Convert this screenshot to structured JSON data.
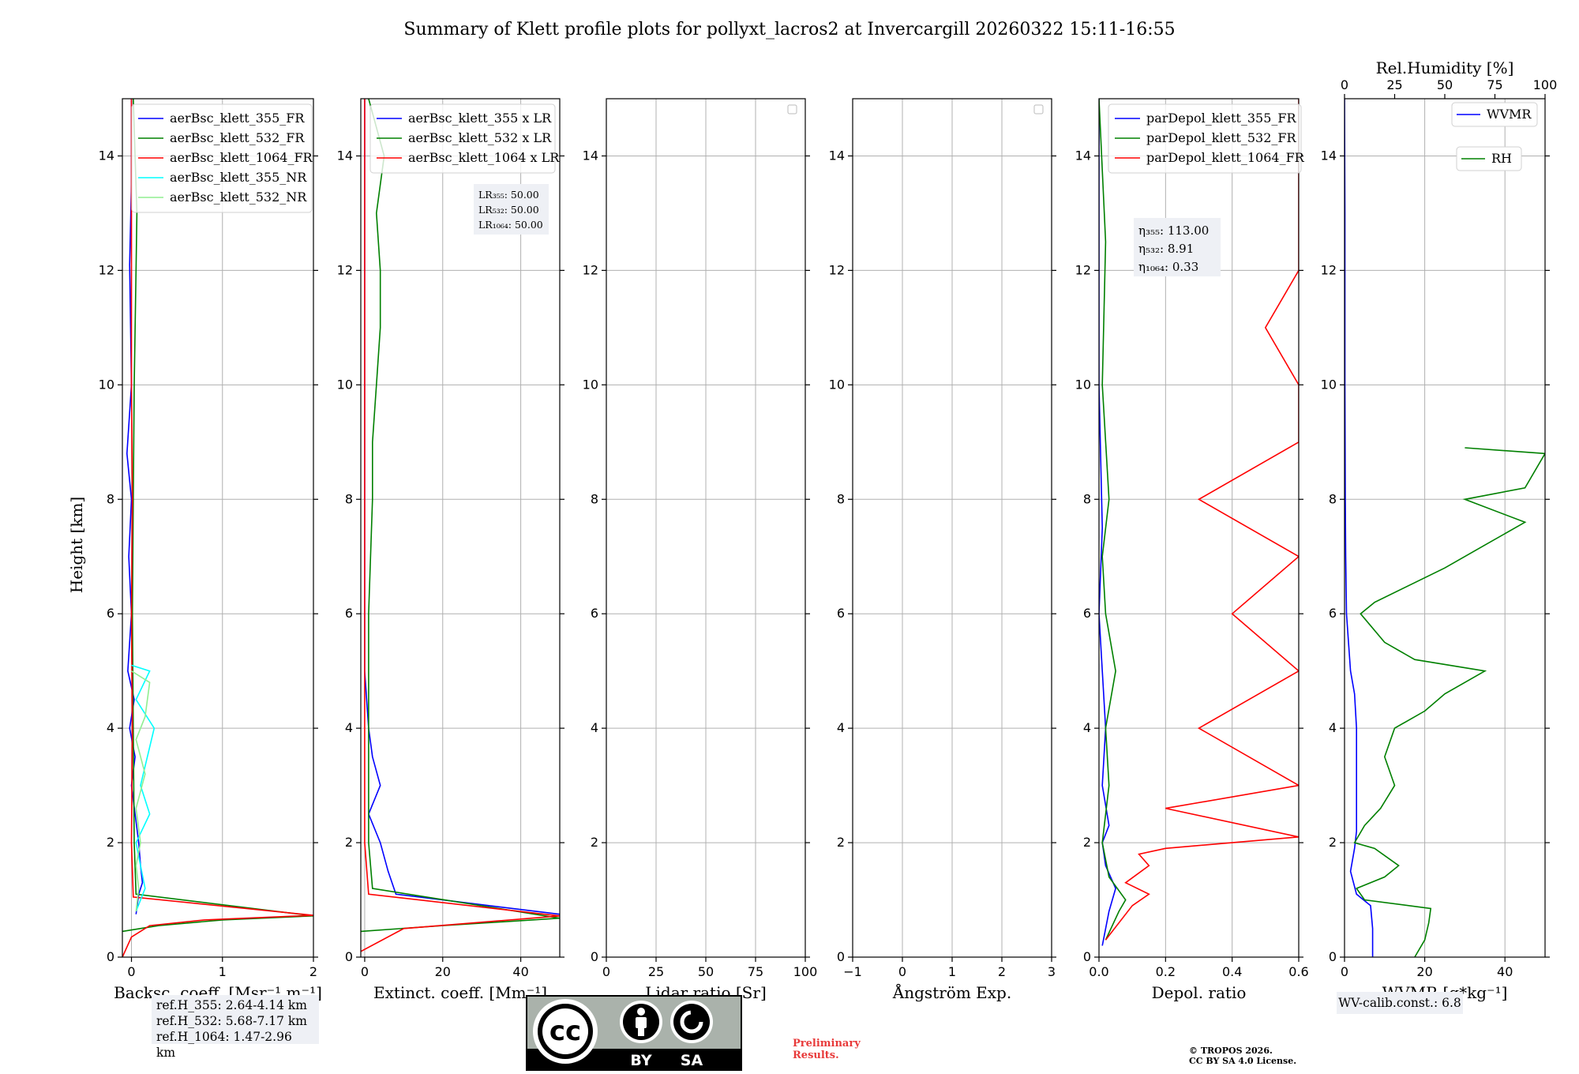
{
  "figure": {
    "title": "Summary of Klett profile plots for pollyxt_lacros2 at Invercargill 20260322 15:11-16:55",
    "ylabel": "Height [km]",
    "ref_heights": [
      "ref.H_355: 2.64-4.14 km",
      "ref.H_532: 5.68-7.17 km",
      "ref.H_1064: 1.47-2.96 km"
    ],
    "wv_calib": "WV-calib.const.: 6.8",
    "preliminary": [
      "Preliminary",
      "Results."
    ],
    "copyright": [
      "© TROPOS 2026.",
      "CC BY SA 4.0 License."
    ],
    "license_badge": {
      "cc": "cc",
      "by": "BY",
      "sa": "SA"
    },
    "colors": {
      "b355": "#0000ff",
      "g532": "#008000",
      "r1064": "#ff0000",
      "c355nr": "#00ffff",
      "lg532nr": "#90ee90"
    }
  },
  "chart_data": [
    {
      "type": "line",
      "panel": "backscatter",
      "xlabel": "Backsc. coeff. [Msr⁻¹ m⁻¹]",
      "xlim": [
        -0.1,
        2
      ],
      "xticks": [
        0,
        1,
        2
      ],
      "ylim": [
        0,
        15
      ],
      "yticks": [
        0,
        2,
        4,
        6,
        8,
        10,
        12,
        14
      ],
      "legend": [
        "aerBsc_klett_355_FR",
        "aerBsc_klett_532_FR",
        "aerBsc_klett_1064_FR",
        "aerBsc_klett_355_NR",
        "aerBsc_klett_532_NR"
      ],
      "series": [
        {
          "name": "aerBsc_klett_355_FR",
          "color": "#0000ff",
          "points": [
            [
              0.05,
              0.75
            ],
            [
              0.08,
              1.1
            ],
            [
              0.12,
              1.3
            ],
            [
              0.1,
              1.6
            ],
            [
              0.08,
              2.0
            ],
            [
              0.04,
              2.5
            ],
            [
              0.0,
              3.0
            ],
            [
              0.04,
              3.5
            ],
            [
              -0.02,
              4.0
            ],
            [
              0.03,
              4.5
            ],
            [
              -0.04,
              5.0
            ],
            [
              0.0,
              6.0
            ],
            [
              -0.03,
              7.0
            ],
            [
              0.0,
              8.0
            ],
            [
              -0.05,
              8.8
            ],
            [
              0.0,
              10.0
            ],
            [
              -0.02,
              12.1
            ],
            [
              0.0,
              13.5
            ],
            [
              0.0,
              15
            ]
          ]
        },
        {
          "name": "aerBsc_klett_532_FR",
          "color": "#008000",
          "points": [
            [
              -0.1,
              0.45
            ],
            [
              0.3,
              0.55
            ],
            [
              1.0,
              0.65
            ],
            [
              2.0,
              0.72
            ],
            [
              0.05,
              1.1
            ],
            [
              0.03,
              2.0
            ],
            [
              0.02,
              4.0
            ],
            [
              0.01,
              6.0
            ],
            [
              0.02,
              8.0
            ],
            [
              0.03,
              10.0
            ],
            [
              0.05,
              12.0
            ],
            [
              0.06,
              13.0
            ],
            [
              0.02,
              15
            ]
          ]
        },
        {
          "name": "aerBsc_klett_1064_FR",
          "color": "#ff0000",
          "points": [
            [
              -0.1,
              0.0
            ],
            [
              0.0,
              0.35
            ],
            [
              0.2,
              0.55
            ],
            [
              0.8,
              0.65
            ],
            [
              2.0,
              0.73
            ],
            [
              0.02,
              1.05
            ],
            [
              0.0,
              2.0
            ],
            [
              0.01,
              4.0
            ],
            [
              0.0,
              6.0
            ],
            [
              0.01,
              8.0
            ],
            [
              0.0,
              10.0
            ],
            [
              0.0,
              12.0
            ],
            [
              0.0,
              13.5
            ],
            [
              0.0,
              15
            ]
          ]
        },
        {
          "name": "aerBsc_klett_355_NR",
          "color": "#00ffff",
          "points": [
            [
              0.05,
              0.8
            ],
            [
              0.15,
              1.2
            ],
            [
              0.1,
              1.6
            ],
            [
              0.05,
              2.0
            ],
            [
              0.2,
              2.5
            ],
            [
              0.1,
              3.0
            ],
            [
              0.25,
              4.0
            ],
            [
              0.05,
              4.5
            ],
            [
              0.2,
              5.0
            ],
            [
              0.0,
              5.1
            ]
          ]
        },
        {
          "name": "aerBsc_klett_532_NR",
          "color": "#90ee90",
          "points": [
            [
              0.05,
              0.8
            ],
            [
              0.08,
              1.2
            ],
            [
              0.05,
              1.6
            ],
            [
              0.1,
              2.0
            ],
            [
              0.05,
              2.6
            ],
            [
              0.15,
              3.2
            ],
            [
              0.05,
              3.8
            ],
            [
              0.15,
              4.2
            ],
            [
              0.2,
              4.8
            ],
            [
              0.0,
              5.0
            ]
          ]
        }
      ]
    },
    {
      "type": "line",
      "panel": "extinction",
      "xlabel": "Extinct. coeff. [Mm⁻¹]",
      "xlim": [
        -1,
        50
      ],
      "xticks": [
        0,
        20,
        40
      ],
      "ylim": [
        0,
        15
      ],
      "legend": [
        "aerBsc_klett_355 x LR",
        "aerBsc_klett_532 x LR",
        "aerBsc_klett_1064 x LR"
      ],
      "lidar_ratios": [
        "LR₃₅₅: 50.00",
        "LR₅₃₂: 50.00",
        "LR₁₀₆₄: 50.00"
      ],
      "series": [
        {
          "name": "aerBsc_klett_355 x LR",
          "color": "#0000ff",
          "points": [
            [
              50,
              0.75
            ],
            [
              8,
              1.1
            ],
            [
              6,
              1.5
            ],
            [
              4,
              2.0
            ],
            [
              1,
              2.5
            ],
            [
              4,
              3.0
            ],
            [
              2,
              3.5
            ],
            [
              1,
              4.0
            ],
            [
              0,
              5.0
            ],
            [
              0,
              6.0
            ],
            [
              0,
              8.0
            ],
            [
              0,
              10.0
            ],
            [
              0,
              12.0
            ],
            [
              0,
              14.0
            ],
            [
              0,
              15
            ]
          ]
        },
        {
          "name": "aerBsc_klett_532 x LR",
          "color": "#008000",
          "points": [
            [
              -1,
              0.45
            ],
            [
              20,
              0.55
            ],
            [
              50,
              0.68
            ],
            [
              2,
              1.2
            ],
            [
              1,
              2.0
            ],
            [
              1,
              4.0
            ],
            [
              1,
              6.0
            ],
            [
              2,
              8.0
            ],
            [
              2,
              9.0
            ],
            [
              3,
              10.0
            ],
            [
              4,
              11.0
            ],
            [
              4,
              12.0
            ],
            [
              3,
              13.0
            ],
            [
              5,
              14.0
            ],
            [
              1,
              15
            ]
          ]
        },
        {
          "name": "aerBsc_klett_1064 x LR",
          "color": "#ff0000",
          "points": [
            [
              -1,
              0.1
            ],
            [
              10,
              0.5
            ],
            [
              50,
              0.72
            ],
            [
              1,
              1.1
            ],
            [
              0,
              2.0
            ],
            [
              0,
              4.0
            ],
            [
              0,
              6.0
            ],
            [
              0,
              8.0
            ],
            [
              0,
              10.0
            ],
            [
              0,
              12.0
            ],
            [
              0,
              14.0
            ],
            [
              0,
              15
            ]
          ]
        }
      ]
    },
    {
      "type": "line",
      "panel": "lidar_ratio",
      "xlabel": "Lidar ratio [Sr]",
      "xlim": [
        0,
        100
      ],
      "xticks": [
        0,
        25,
        50,
        75,
        100
      ],
      "ylim": [
        0,
        15
      ],
      "series": []
    },
    {
      "type": "line",
      "panel": "angstrom",
      "xlabel": "Ångström Exp.",
      "xlim": [
        -1,
        3
      ],
      "xticks": [
        -1,
        0,
        1,
        2,
        3
      ],
      "ylim": [
        0,
        15
      ],
      "series": []
    },
    {
      "type": "line",
      "panel": "depolarization",
      "xlabel": "Depol. ratio",
      "xlim": [
        0,
        0.6
      ],
      "xticks": [
        0.0,
        0.2,
        0.4,
        0.6
      ],
      "ylim": [
        0,
        15
      ],
      "legend": [
        "parDepol_klett_355_FR",
        "parDepol_klett_532_FR",
        "parDepol_klett_1064_FR"
      ],
      "eta": [
        "η₃₅₅: 113.00",
        "η₅₃₂: 8.91",
        "η₁₀₆₄: 0.33"
      ],
      "series": [
        {
          "name": "parDepol_klett_355_FR",
          "color": "#0000ff",
          "points": [
            [
              0.01,
              0.2
            ],
            [
              0.03,
              0.8
            ],
            [
              0.05,
              1.2
            ],
            [
              0.02,
              1.6
            ],
            [
              0.01,
              2.0
            ],
            [
              0.03,
              2.3
            ],
            [
              0.01,
              3.0
            ],
            [
              0.02,
              4.0
            ],
            [
              0.01,
              5.0
            ],
            [
              0.0,
              6.0
            ],
            [
              0.01,
              7.5
            ],
            [
              0.0,
              10.0
            ],
            [
              0.0,
              15
            ]
          ]
        },
        {
          "name": "parDepol_klett_532_FR",
          "color": "#008000",
          "points": [
            [
              0.02,
              0.3
            ],
            [
              0.06,
              0.8
            ],
            [
              0.08,
              1.0
            ],
            [
              0.03,
              1.4
            ],
            [
              0.01,
              2.0
            ],
            [
              0.03,
              3.0
            ],
            [
              0.02,
              4.0
            ],
            [
              0.05,
              5.0
            ],
            [
              0.02,
              6.0
            ],
            [
              0.01,
              7.0
            ],
            [
              0.03,
              8.0
            ],
            [
              0.01,
              10.0
            ],
            [
              0.02,
              12.5
            ],
            [
              0.0,
              15
            ]
          ]
        },
        {
          "name": "parDepol_klett_1064_FR",
          "color": "#ff0000",
          "points": [
            [
              0.02,
              0.3
            ],
            [
              0.1,
              0.9
            ],
            [
              0.15,
              1.1
            ],
            [
              0.08,
              1.3
            ],
            [
              0.15,
              1.6
            ],
            [
              0.12,
              1.8
            ],
            [
              0.2,
              1.9
            ],
            [
              0.6,
              2.1
            ],
            [
              0.2,
              2.6
            ],
            [
              0.6,
              3.0
            ],
            [
              0.3,
              4.0
            ],
            [
              0.6,
              5.0
            ],
            [
              0.4,
              6.0
            ],
            [
              0.6,
              7.0
            ],
            [
              0.3,
              8.0
            ],
            [
              0.6,
              9.0
            ],
            [
              0.6,
              10.0
            ],
            [
              0.5,
              11.0
            ],
            [
              0.6,
              12.0
            ],
            [
              0.6,
              13.0
            ],
            [
              0.6,
              14.0
            ],
            [
              0.6,
              15
            ]
          ]
        }
      ]
    },
    {
      "type": "line",
      "panel": "water_vapor",
      "xlabel": "WVMR [g*kg⁻¹]",
      "xlim": [
        0,
        50
      ],
      "xticks": [
        0,
        20,
        40
      ],
      "top_xlabel": "Rel.Humidity [%]",
      "top_xlim": [
        0,
        100
      ],
      "top_xticks": [
        0,
        25,
        50,
        75,
        100
      ],
      "ylim": [
        0,
        15
      ],
      "legend": [
        "WVMR",
        "RH"
      ],
      "series": [
        {
          "name": "WVMR",
          "color": "#0000ff",
          "points": [
            [
              7,
              0.0
            ],
            [
              7,
              0.5
            ],
            [
              6.5,
              0.9
            ],
            [
              3,
              1.1
            ],
            [
              1.5,
              1.5
            ],
            [
              2.5,
              1.9
            ],
            [
              3,
              2.2
            ],
            [
              3,
              3.0
            ],
            [
              3,
              4.0
            ],
            [
              2.5,
              4.6
            ],
            [
              1.5,
              5.0
            ],
            [
              0.5,
              6.0
            ],
            [
              0.3,
              7.0
            ],
            [
              0.2,
              8.0
            ],
            [
              0.1,
              10.0
            ],
            [
              0.1,
              12.0
            ],
            [
              0.1,
              13.0
            ],
            [
              0.0,
              15
            ]
          ]
        },
        {
          "name": "RH",
          "color": "#008000",
          "points": [
            [
              35,
              0.0
            ],
            [
              40,
              0.3
            ],
            [
              42,
              0.6
            ],
            [
              43,
              0.85
            ],
            [
              10,
              1.0
            ],
            [
              6,
              1.2
            ],
            [
              20,
              1.4
            ],
            [
              27,
              1.6
            ],
            [
              15,
              1.9
            ],
            [
              5,
              2.0
            ],
            [
              10,
              2.3
            ],
            [
              18,
              2.6
            ],
            [
              25,
              3.0
            ],
            [
              20,
              3.5
            ],
            [
              25,
              4.0
            ],
            [
              40,
              4.3
            ],
            [
              50,
              4.6
            ],
            [
              70,
              5.0
            ],
            [
              35,
              5.2
            ],
            [
              20,
              5.5
            ],
            [
              8,
              6.0
            ],
            [
              15,
              6.2
            ],
            [
              50,
              6.8
            ],
            [
              70,
              7.2
            ],
            [
              90,
              7.6
            ],
            [
              60,
              8.0
            ],
            [
              90,
              8.2
            ],
            [
              100,
              8.8
            ],
            [
              60,
              8.9
            ]
          ]
        }
      ]
    }
  ]
}
